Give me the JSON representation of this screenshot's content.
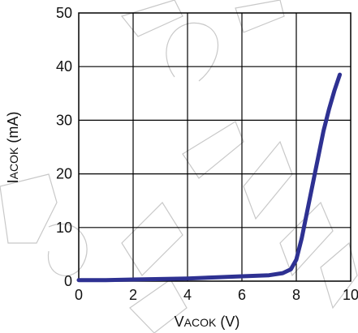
{
  "chart_data": {
    "type": "line",
    "title": "",
    "xlabel_main": "V",
    "xlabel_sub": "ACOK",
    "xlabel_unit": " (V)",
    "ylabel_main": "I",
    "ylabel_sub": "ACOK",
    "ylabel_unit": " (mA)",
    "xlim": [
      0,
      10
    ],
    "ylim": [
      0,
      50
    ],
    "x_ticks": [
      0,
      2,
      4,
      6,
      8,
      10
    ],
    "y_ticks": [
      0,
      10,
      20,
      30,
      40,
      50
    ],
    "grid": true,
    "series": [
      {
        "color": "#2e3192",
        "x": [
          0,
          1,
          2,
          3,
          4,
          5,
          6,
          7,
          7.5,
          7.8,
          8.0,
          8.2,
          8.4,
          8.6,
          8.8,
          9.0,
          9.2,
          9.4,
          9.6
        ],
        "y": [
          0.2,
          0.2,
          0.3,
          0.4,
          0.5,
          0.7,
          0.9,
          1.1,
          1.5,
          2.2,
          4.0,
          8.0,
          13.0,
          18.0,
          23.0,
          28.0,
          32.0,
          35.5,
          38.5
        ]
      }
    ]
  },
  "watermark": {
    "text": "PS COM SHENZHEN",
    "color": "#9a9a9a"
  }
}
